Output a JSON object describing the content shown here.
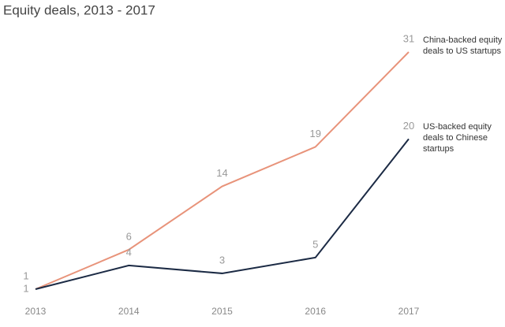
{
  "chart_data": {
    "type": "line",
    "title": "Equity deals, 2013 - 2017",
    "x": [
      2013,
      2014,
      2015,
      2016,
      2017
    ],
    "series": [
      {
        "name": "China-backed equity deals to US startups",
        "color": "#e8937a",
        "values": [
          1,
          6,
          14,
          19,
          31
        ]
      },
      {
        "name": "US-backed equity deals to Chinese startups",
        "color": "#1b2a44",
        "values": [
          1,
          4,
          3,
          5,
          20
        ]
      }
    ]
  }
}
